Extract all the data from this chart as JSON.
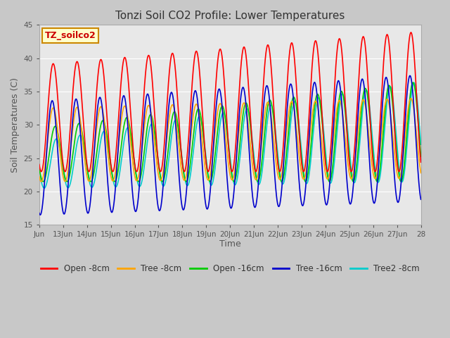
{
  "title": "Tonzi Soil CO2 Profile: Lower Temperatures",
  "ylabel": "Soil Temperatures (C)",
  "xlabel": "Time",
  "annotation": "TZ_soilco2",
  "ylim": [
    15,
    45
  ],
  "fig_bg": "#c8c8c8",
  "plot_bg_color": "#e8e8e8",
  "series_colors": {
    "open_8cm": "#ff0000",
    "tree_8cm": "#ffa500",
    "open_16cm": "#00cc00",
    "tree_16cm": "#0000cc",
    "tree2_8cm": "#00cccc"
  },
  "legend_labels": [
    "Open -8cm",
    "Tree -8cm",
    "Open -16cm",
    "Tree -16cm",
    "Tree2 -8cm"
  ],
  "xtick_labels": [
    "Jun",
    "13Jun",
    "14Jun",
    "15Jun",
    "16Jun",
    "17Jun",
    "18Jun",
    "19Jun",
    "20Jun",
    "21Jun",
    "22Jun",
    "23Jun",
    "24Jun",
    "25Jun",
    "26Jun",
    "27Jun",
    "28"
  ],
  "xtick_positions": [
    0,
    24,
    48,
    72,
    96,
    120,
    144,
    168,
    192,
    216,
    240,
    264,
    288,
    312,
    336,
    360,
    384
  ],
  "period_hours": 24,
  "n_points": 3840,
  "grid_color": "#ffffff",
  "tick_color": "#555555",
  "title_fontsize": 11,
  "label_fontsize": 9,
  "tick_fontsize": 7.5,
  "legend_fontsize": 8.5,
  "line_width": 1.2
}
